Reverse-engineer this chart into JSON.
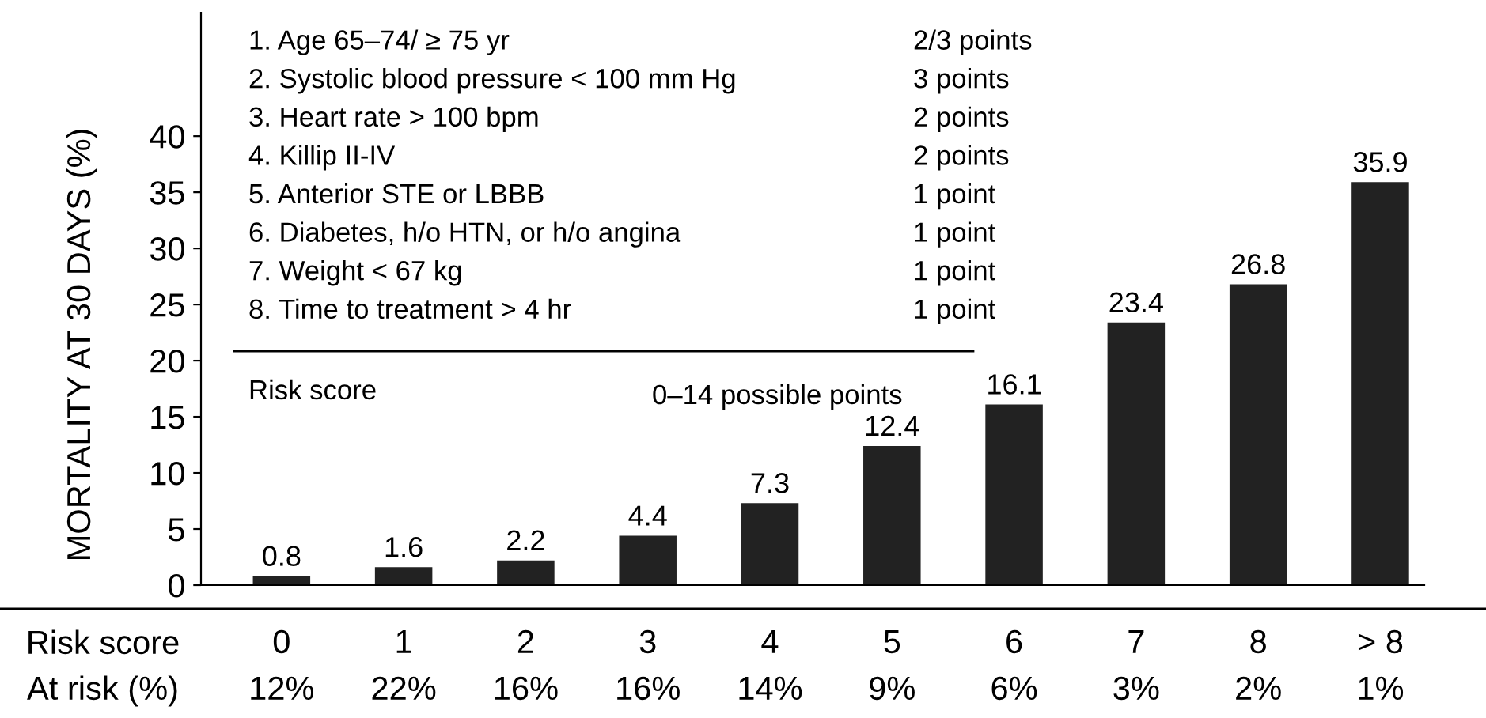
{
  "chart_data": {
    "type": "bar",
    "categories": [
      "0",
      "1",
      "2",
      "3",
      "4",
      "5",
      "6",
      "7",
      "8",
      "> 8"
    ],
    "values": [
      0.8,
      1.6,
      2.2,
      4.4,
      7.3,
      12.4,
      16.1,
      23.4,
      26.8,
      35.9
    ],
    "color": "#222222",
    "data_labels": true,
    "xlabel": "Risk score",
    "ylabel": "MORTALITY AT 30 DAYS (%)",
    "ylim": [
      0,
      51
    ],
    "yticks": [
      0,
      5,
      10,
      15,
      20,
      25,
      30,
      35,
      40
    ],
    "grid": false,
    "annotations": [
      "1. Age 65–74/ ≥ 75 yr",
      "2/3 points",
      "2. Systolic blood pressure < 100 mm Hg",
      "3 points",
      "3. Heart rate > 100 bpm",
      "2 points",
      "4. Killip II-IV",
      "2 points",
      "5. Anterior STE or LBBB",
      "1 point",
      "6. Diabetes, h/o HTN, or h/o angina",
      "1 point",
      "7. Weight < 67 kg",
      "1 point",
      "8. Time to treatment > 4 hr",
      "1 point",
      "Risk score",
      "0–14 possible points",
      "At risk (%)",
      "12%",
      "22%",
      "16%",
      "16%",
      "14%",
      "9%",
      "6%",
      "3%",
      "2%",
      "1%"
    ]
  }
}
